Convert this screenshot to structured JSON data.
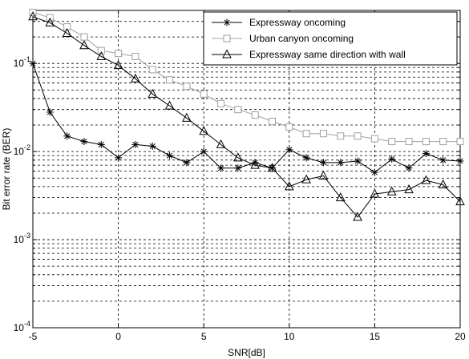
{
  "chart_data": {
    "type": "line",
    "title": "",
    "xlabel": "SNR[dB]",
    "ylabel": "Bit error rate (BER)",
    "xlim": [
      -5,
      20
    ],
    "ylim": [
      0.0001,
      0.4
    ],
    "yscale": "log",
    "grid": true,
    "legend_position": "top-right",
    "x_ticks": [
      {
        "value": -5,
        "label": "-5"
      },
      {
        "value": 0,
        "label": "0"
      },
      {
        "value": 5,
        "label": "5"
      },
      {
        "value": 10,
        "label": "10"
      },
      {
        "value": 15,
        "label": "15"
      },
      {
        "value": 20,
        "label": "20"
      }
    ],
    "y_ticks": [
      {
        "value": 0.1,
        "base": "10",
        "exp": "-1"
      },
      {
        "value": 0.01,
        "base": "10",
        "exp": "-2"
      },
      {
        "value": 0.001,
        "base": "10",
        "exp": "-3"
      },
      {
        "value": 0.0001,
        "base": "10",
        "exp": "-4"
      }
    ],
    "x": [
      -5,
      -4,
      -3,
      -2,
      -1,
      0,
      1,
      2,
      3,
      4,
      5,
      6,
      7,
      8,
      9,
      10,
      11,
      12,
      13,
      14,
      15,
      16,
      17,
      18,
      19,
      20
    ],
    "series": [
      {
        "name": "Expressway oncoming",
        "marker": "star",
        "color": "#000000",
        "values": [
          0.1,
          0.028,
          0.015,
          0.013,
          0.012,
          0.0085,
          0.012,
          0.0115,
          0.009,
          0.0075,
          0.01,
          0.0065,
          0.0065,
          0.0075,
          0.0065,
          0.0105,
          0.0085,
          0.0075,
          0.0075,
          0.0078,
          0.0058,
          0.0082,
          0.0065,
          0.0095,
          0.008,
          0.0078
        ]
      },
      {
        "name": "Urban canyon oncoming",
        "marker": "square",
        "color": "#a0a0a0",
        "values": [
          0.38,
          0.33,
          0.26,
          0.2,
          0.14,
          0.13,
          0.12,
          0.085,
          0.065,
          0.055,
          0.045,
          0.035,
          0.03,
          0.026,
          0.022,
          0.019,
          0.016,
          0.016,
          0.015,
          0.015,
          0.014,
          0.013,
          0.013,
          0.013,
          0.013,
          0.013
        ]
      },
      {
        "name": "Expressway same direction with wall",
        "marker": "triangle",
        "color": "#000000",
        "values": [
          0.34,
          0.29,
          0.22,
          0.16,
          0.12,
          0.095,
          0.067,
          0.045,
          0.033,
          0.024,
          0.017,
          0.012,
          0.0085,
          0.007,
          0.0065,
          0.004,
          0.0048,
          0.0053,
          0.003,
          0.0018,
          0.0033,
          0.0035,
          0.0037,
          0.0047,
          0.0042,
          0.0027
        ]
      }
    ]
  }
}
